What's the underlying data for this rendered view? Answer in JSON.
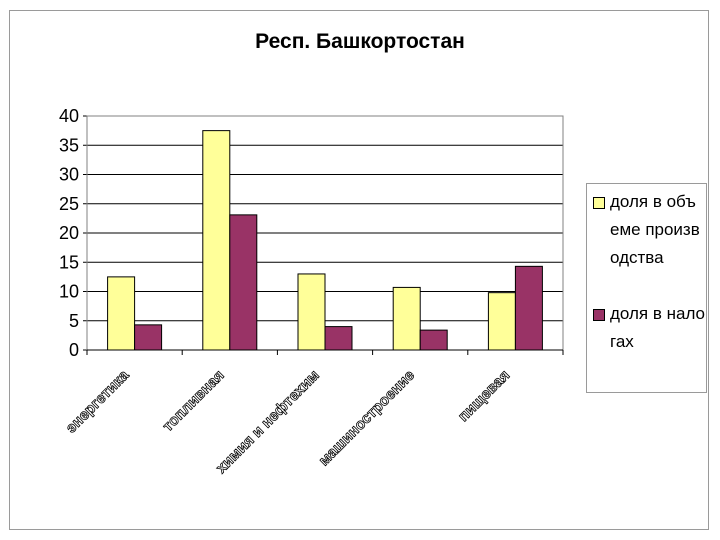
{
  "chart_data": {
    "type": "bar",
    "title": "Респ. Башкортостан",
    "xlabel": "",
    "ylabel": "",
    "categories": [
      "энергетика",
      "топливная",
      "химия и нефтехим",
      "машиностроение",
      "пищевая"
    ],
    "series": [
      {
        "name": "доля в объеме производства",
        "color": "#ffff99",
        "values": [
          12.5,
          37.5,
          13,
          10.7,
          9.8
        ]
      },
      {
        "name": "доля в налогах",
        "color": "#993366",
        "values": [
          4.3,
          23.1,
          4,
          3.4,
          14.3
        ]
      }
    ],
    "ylim": [
      0,
      40
    ],
    "yticks": [
      "0",
      "5",
      "10",
      "15",
      "20",
      "25",
      "30",
      "35",
      "40"
    ],
    "grid": true,
    "legend_position": "right"
  }
}
